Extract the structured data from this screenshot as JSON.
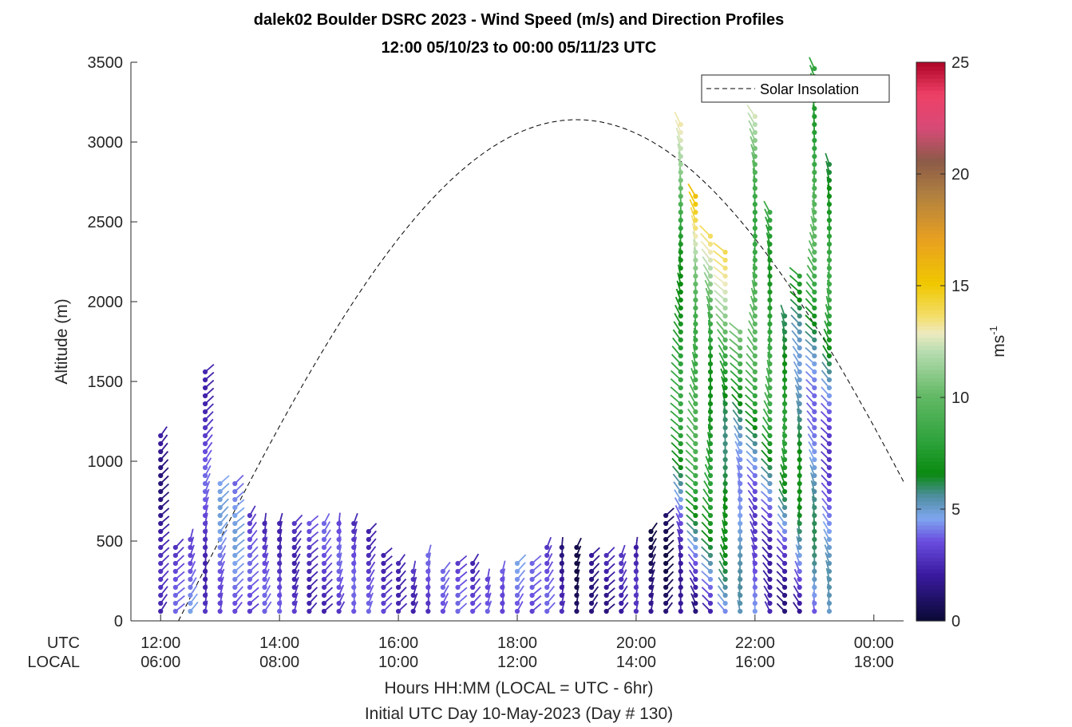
{
  "chart_data": {
    "type": "scatter",
    "title_line1": "dalek02 Boulder DSRC 2023 - Wind Speed (m/s) and Direction Profiles",
    "title_line2": "12:00 05/10/23 to 00:00 05/11/23  UTC",
    "ylabel": "Altitude (m)",
    "xlabel": "Hours HH:MM  (LOCAL = UTC - 6hr)",
    "xlabel2": "Initial UTC Day 10-May-2023 (Day # 130)",
    "row_label_utc": "UTC",
    "row_label_local": "LOCAL",
    "xlim_hours": [
      11.5,
      24.5
    ],
    "ylim": [
      0,
      3500
    ],
    "yticks": [
      0,
      500,
      1000,
      1500,
      2000,
      2500,
      3000,
      3500
    ],
    "xticks_utc": [
      "12:00",
      "14:00",
      "16:00",
      "18:00",
      "20:00",
      "22:00",
      "00:00"
    ],
    "xticks_local": [
      "06:00",
      "08:00",
      "10:00",
      "12:00",
      "14:00",
      "16:00",
      "18:00"
    ],
    "xtick_hours": [
      12,
      14,
      16,
      18,
      20,
      22,
      24
    ],
    "legend": {
      "label": "Solar Insolation",
      "position": "top-right"
    },
    "solar_insolation": {
      "start_hour": 12.3,
      "end_hour": 24.5,
      "peak_hour": 19.0,
      "peak_altitude": 3140,
      "end_altitude": 850
    },
    "colorbar": {
      "label": "ms",
      "label_exponent": "-1",
      "range": [
        0,
        25
      ],
      "ticks": [
        0,
        5,
        10,
        15,
        20,
        25
      ]
    },
    "profiles_note": "wind barbs every ~15 min; colored dots = wind speed",
    "profiles": [
      {
        "hour": 12.0,
        "top": 1180,
        "speed": 2
      },
      {
        "hour": 12.25,
        "top": 470,
        "speed": 3
      },
      {
        "hour": 12.5,
        "top": 520,
        "speed": 4
      },
      {
        "hour": 12.75,
        "top": 1560,
        "speed": 3
      },
      {
        "hour": 13.0,
        "top": 880,
        "speed": 4
      },
      {
        "hour": 13.25,
        "top": 890,
        "speed": 4
      },
      {
        "hour": 13.5,
        "top": 680,
        "speed": 3
      },
      {
        "hour": 13.75,
        "top": 630,
        "speed": 3
      },
      {
        "hour": 14.0,
        "top": 630,
        "speed": 3
      },
      {
        "hour": 14.25,
        "top": 630,
        "speed": 3
      },
      {
        "hour": 14.5,
        "top": 630,
        "speed": 3
      },
      {
        "hour": 14.75,
        "top": 630,
        "speed": 3
      },
      {
        "hour": 15.0,
        "top": 630,
        "speed": 3
      },
      {
        "hour": 15.25,
        "top": 630,
        "speed": 3
      },
      {
        "hour": 15.5,
        "top": 580,
        "speed": 3
      },
      {
        "hour": 15.75,
        "top": 430,
        "speed": 3
      },
      {
        "hour": 16.0,
        "top": 380,
        "speed": 3
      },
      {
        "hour": 16.25,
        "top": 340,
        "speed": 3
      },
      {
        "hour": 16.5,
        "top": 440,
        "speed": 3
      },
      {
        "hour": 16.75,
        "top": 330,
        "speed": 3
      },
      {
        "hour": 17.0,
        "top": 380,
        "speed": 3
      },
      {
        "hour": 17.25,
        "top": 400,
        "speed": 3
      },
      {
        "hour": 17.5,
        "top": 300,
        "speed": 4
      },
      {
        "hour": 17.75,
        "top": 340,
        "speed": 4
      },
      {
        "hour": 18.0,
        "top": 400,
        "speed": 4
      },
      {
        "hour": 18.25,
        "top": 380,
        "speed": 3
      },
      {
        "hour": 18.5,
        "top": 460,
        "speed": 3
      },
      {
        "hour": 18.75,
        "top": 460,
        "speed": 2
      },
      {
        "hour": 19.0,
        "top": 460,
        "speed": 1
      },
      {
        "hour": 19.25,
        "top": 450,
        "speed": 2
      },
      {
        "hour": 19.5,
        "top": 450,
        "speed": 2
      },
      {
        "hour": 19.75,
        "top": 430,
        "speed": 2
      },
      {
        "hour": 20.0,
        "top": 460,
        "speed": 2
      },
      {
        "hour": 20.25,
        "top": 600,
        "speed": 1
      },
      {
        "hour": 20.5,
        "top": 680,
        "speed": 1
      },
      {
        "hour": 20.75,
        "top": 3110,
        "speed": 11
      },
      {
        "hour": 21.0,
        "top": 2700,
        "speed": 14
      },
      {
        "hour": 21.25,
        "top": 2420,
        "speed": 12
      },
      {
        "hour": 21.5,
        "top": 2350,
        "speed": 12
      },
      {
        "hour": 21.75,
        "top": 1850,
        "speed": 9
      },
      {
        "hour": 22.0,
        "top": 3200,
        "speed": 12
      },
      {
        "hour": 22.25,
        "top": 2600,
        "speed": 10
      },
      {
        "hour": 22.5,
        "top": 1950,
        "speed": 8
      },
      {
        "hour": 22.75,
        "top": 2200,
        "speed": 8
      },
      {
        "hour": 23.0,
        "top": 3500,
        "speed": 10
      },
      {
        "hour": 23.25,
        "top": 2880,
        "speed": 8
      }
    ]
  }
}
